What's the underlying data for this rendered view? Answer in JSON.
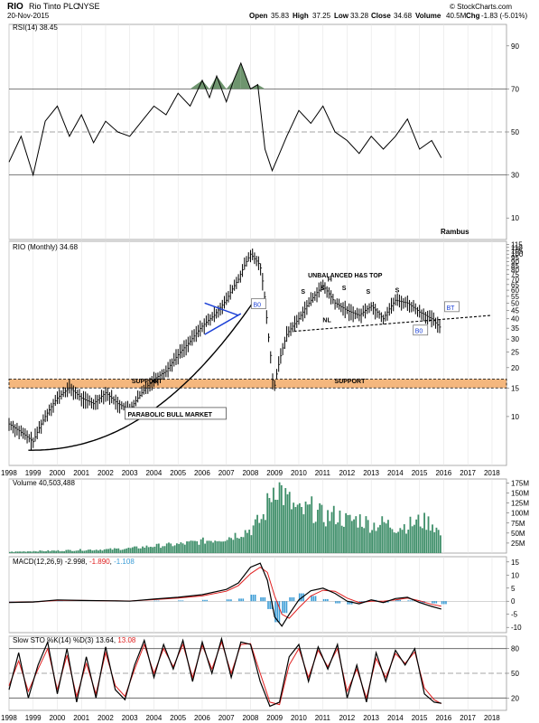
{
  "header": {
    "symbol": "RIO",
    "company": "Rio Tinto PLC",
    "exchange": "NYSE",
    "date": "20-Nov-2015",
    "quote": {
      "open": "35.83",
      "high": "37.25",
      "low": "33.28",
      "close": "34.68",
      "volume": "40.5M",
      "chg": "-1.83 (-5.01%)"
    },
    "labels": {
      "open": "Open",
      "high": "High",
      "low": "Low",
      "close": "Close",
      "volume": "Volume",
      "chg": "Chg"
    },
    "watermark": "© StockCharts.com"
  },
  "colors": {
    "price_bar": "#000000",
    "support_zone": "#f4b77e",
    "rsi_fill": "#5e8a5e",
    "volume": "#3f8f6a",
    "macd": "#000000",
    "signal": "#e02020",
    "hist": "#3b9cd6",
    "trend_blue": "#1a3fd6",
    "stoch_k": "#000000",
    "stoch_d": "#e02020"
  },
  "chart_data": [
    {
      "type": "line",
      "name": "rsi-panel",
      "legend": "RSI(14) 38.45",
      "ylim": [
        0,
        100
      ],
      "ticks": [
        "90",
        "70",
        "50",
        "30",
        "10"
      ],
      "tick_values": [
        90,
        70,
        50,
        30,
        10
      ],
      "reference_lines": [
        70,
        50,
        30
      ],
      "annotation": "Rambus",
      "x": [
        1998.0,
        1998.5,
        1999.0,
        1999.5,
        2000.0,
        2000.5,
        2001.0,
        2001.5,
        2002.0,
        2002.5,
        2003.0,
        2003.5,
        2004.0,
        2004.5,
        2005.0,
        2005.5,
        2006.0,
        2006.3,
        2006.6,
        2007.0,
        2007.3,
        2007.6,
        2008.0,
        2008.3,
        2008.6,
        2008.9,
        2009.2,
        2009.5,
        2010.0,
        2010.5,
        2011.0,
        2011.5,
        2012.0,
        2012.5,
        2013.0,
        2013.5,
        2014.0,
        2014.5,
        2015.0,
        2015.5,
        2015.9
      ],
      "values": [
        36,
        48,
        30,
        55,
        62,
        48,
        58,
        45,
        55,
        50,
        48,
        55,
        62,
        58,
        68,
        62,
        74,
        66,
        76,
        64,
        74,
        82,
        70,
        72,
        42,
        32,
        40,
        48,
        60,
        54,
        62,
        50,
        46,
        40,
        48,
        42,
        48,
        56,
        42,
        46,
        38
      ],
      "overbought_fill_threshold": 70
    },
    {
      "type": "bar",
      "name": "price-panel",
      "legend": "RIO (Monthly) 34.68",
      "ylim": [
        5,
        120
      ],
      "scale": "log",
      "ticks": [
        "115",
        "110",
        "105",
        "100",
        "95",
        "90",
        "85",
        "80",
        "75",
        "70",
        "65",
        "60",
        "55",
        "50",
        "45",
        "40",
        "35",
        "30",
        "25",
        "20",
        "15",
        "10"
      ],
      "tick_values": [
        115,
        110,
        105,
        100,
        95,
        90,
        85,
        80,
        75,
        70,
        65,
        60,
        55,
        50,
        45,
        40,
        35,
        30,
        25,
        20,
        15,
        10
      ],
      "x_ticks": [
        "1998",
        "1999",
        "2000",
        "2001",
        "2002",
        "2003",
        "2004",
        "2005",
        "2006",
        "2007",
        "2008",
        "2009",
        "2010",
        "2011",
        "2012",
        "2013",
        "2014",
        "2015",
        "2016",
        "2017",
        "2018"
      ],
      "x_tick_values": [
        1998,
        1999,
        2000,
        2001,
        2002,
        2003,
        2004,
        2005,
        2006,
        2007,
        2008,
        2009,
        2010,
        2011,
        2012,
        2013,
        2014,
        2015,
        2016,
        2017,
        2018
      ],
      "xlim": [
        1998,
        2018.6
      ],
      "price_x": [
        1998.0,
        1998.5,
        1999.0,
        1999.5,
        2000.0,
        2000.5,
        2001.0,
        2001.5,
        2002.0,
        2002.5,
        2003.0,
        2003.5,
        2004.0,
        2004.5,
        2005.0,
        2005.5,
        2006.0,
        2006.5,
        2007.0,
        2007.5,
        2008.0,
        2008.4,
        2008.7,
        2008.95,
        2009.2,
        2009.5,
        2010.0,
        2010.5,
        2011.0,
        2011.5,
        2012.0,
        2012.5,
        2013.0,
        2013.5,
        2014.0,
        2014.5,
        2015.0,
        2015.5,
        2015.9
      ],
      "price_values": [
        9,
        8,
        7,
        10,
        13,
        15,
        13,
        12,
        14,
        12,
        11,
        14,
        17,
        19,
        24,
        29,
        36,
        42,
        52,
        70,
        100,
        85,
        35,
        14,
        22,
        32,
        40,
        52,
        64,
        50,
        45,
        42,
        48,
        40,
        52,
        50,
        44,
        40,
        34.68
      ],
      "support_zone": [
        15,
        17
      ],
      "annotations": [
        {
          "text": "SUPPORT",
          "x": 2004.5,
          "y": 16
        },
        {
          "text": "SUPPORT",
          "x": 2012.9,
          "y": 16
        },
        {
          "text": "UNBALANCED H&S TOP",
          "x": 2011.8,
          "y": 72
        },
        {
          "text": "H",
          "x": 2011.3,
          "y": 68
        },
        {
          "text": "S",
          "x": 2010.2,
          "y": 57
        },
        {
          "text": "S",
          "x": 2011.0,
          "y": 60
        },
        {
          "text": "S",
          "x": 2011.9,
          "y": 60
        },
        {
          "text": "S",
          "x": 2012.9,
          "y": 57
        },
        {
          "text": "S",
          "x": 2014.1,
          "y": 58
        },
        {
          "text": "NL",
          "x": 2011.1,
          "y": 38
        },
        {
          "text": "B0",
          "x": 2008.3,
          "y": 48
        },
        {
          "text": "B0",
          "x": 2015.0,
          "y": 33
        },
        {
          "text": "BT",
          "x": 2016.3,
          "y": 46
        },
        {
          "text": "PARABOLIC BULL MARKET",
          "x": 2004.0,
          "y": 10
        }
      ]
    },
    {
      "type": "bar",
      "name": "volume-panel",
      "legend": "Volume 40,503,488",
      "ylim": [
        0,
        185
      ],
      "ticks": [
        "175M",
        "150M",
        "125M",
        "100M",
        "75M",
        "50M",
        "25M"
      ],
      "tick_values": [
        175,
        150,
        125,
        100,
        75,
        50,
        25
      ],
      "x": [
        1998.0,
        1999.0,
        2000.0,
        2001.0,
        2002.0,
        2003.0,
        2004.0,
        2005.0,
        2006.0,
        2007.0,
        2008.0,
        2008.5,
        2009.0,
        2009.5,
        2010.0,
        2010.5,
        2011.0,
        2011.5,
        2012.0,
        2012.5,
        2013.0,
        2013.5,
        2014.0,
        2014.5,
        2015.0,
        2015.5,
        2015.9
      ],
      "values": [
        3,
        5,
        6,
        8,
        9,
        12,
        18,
        22,
        30,
        38,
        60,
        90,
        180,
        130,
        100,
        110,
        90,
        95,
        80,
        85,
        70,
        75,
        65,
        70,
        80,
        75,
        40.5
      ]
    },
    {
      "type": "line",
      "name": "macd-panel",
      "legend_macd": "MACD(12,26,9)",
      "legend_macd_value": "-2.998",
      "legend_signal": "-1.890",
      "legend_hist": "-1.108",
      "ylim": [
        -12,
        17
      ],
      "ticks": [
        "15",
        "10",
        "5",
        "0",
        "-5",
        "-10"
      ],
      "tick_values": [
        15,
        10,
        5,
        0,
        -5,
        -10
      ],
      "x": [
        1998.0,
        1999.0,
        2000.0,
        2001.0,
        2002.0,
        2003.0,
        2004.0,
        2005.0,
        2006.0,
        2007.0,
        2007.5,
        2008.0,
        2008.4,
        2008.7,
        2009.0,
        2009.3,
        2009.6,
        2010.0,
        2010.5,
        2011.0,
        2011.5,
        2012.0,
        2012.5,
        2013.0,
        2013.5,
        2014.0,
        2014.5,
        2015.0,
        2015.5,
        2015.9
      ],
      "macd": [
        -0.5,
        -0.3,
        0.5,
        0.3,
        0.2,
        0.0,
        0.8,
        1.5,
        2.5,
        4.5,
        7.0,
        13.0,
        14.5,
        8.0,
        -6.0,
        -9.5,
        -5.0,
        0.5,
        4.0,
        5.0,
        3.0,
        0.0,
        -1.0,
        0.5,
        -0.5,
        1.0,
        1.5,
        -0.5,
        -2.0,
        -2.998
      ],
      "signal": [
        -0.4,
        -0.3,
        0.3,
        0.3,
        0.2,
        0.1,
        0.6,
        1.2,
        2.0,
        3.8,
        6.0,
        10.5,
        13.0,
        11.0,
        2.0,
        -5.0,
        -6.5,
        -2.5,
        2.0,
        4.2,
        3.8,
        1.2,
        -0.5,
        0.0,
        0.0,
        0.5,
        1.2,
        0.2,
        -1.2,
        -1.89
      ],
      "hist": [
        -0.1,
        0.0,
        0.2,
        0.0,
        0.0,
        -0.1,
        0.2,
        0.3,
        0.5,
        0.7,
        1.0,
        2.5,
        1.5,
        -3.0,
        -8.0,
        -4.5,
        1.5,
        3.0,
        2.0,
        0.8,
        -0.8,
        -1.2,
        -0.5,
        0.5,
        -0.5,
        0.5,
        0.3,
        -0.7,
        -0.8,
        -1.108
      ]
    },
    {
      "type": "line",
      "name": "stochastic-panel",
      "legend_k": "Slow STO %K(14) %D(3) 13.64,",
      "legend_d": "13.08",
      "ylim": [
        5,
        95
      ],
      "ticks": [
        "80",
        "50",
        "20"
      ],
      "tick_values": [
        80,
        50,
        20
      ],
      "x": [
        1998.0,
        1998.4,
        1998.8,
        1999.2,
        1999.6,
        2000.0,
        2000.4,
        2000.8,
        2001.2,
        2001.6,
        2002.0,
        2002.4,
        2002.8,
        2003.2,
        2003.6,
        2004.0,
        2004.4,
        2004.8,
        2005.2,
        2005.6,
        2006.0,
        2006.4,
        2006.8,
        2007.2,
        2007.6,
        2008.0,
        2008.4,
        2008.8,
        2009.2,
        2009.6,
        2010.0,
        2010.4,
        2010.8,
        2011.2,
        2011.6,
        2012.0,
        2012.4,
        2012.8,
        2013.2,
        2013.6,
        2014.0,
        2014.4,
        2014.8,
        2015.2,
        2015.6,
        2015.9
      ],
      "k": [
        30,
        75,
        20,
        60,
        88,
        25,
        80,
        15,
        70,
        20,
        82,
        30,
        18,
        60,
        90,
        45,
        85,
        55,
        90,
        40,
        88,
        50,
        92,
        45,
        88,
        85,
        40,
        10,
        15,
        70,
        85,
        40,
        82,
        55,
        85,
        20,
        60,
        15,
        75,
        40,
        78,
        60,
        80,
        25,
        15,
        13.64
      ],
      "d": [
        35,
        65,
        28,
        55,
        80,
        30,
        72,
        22,
        62,
        25,
        75,
        35,
        22,
        55,
        85,
        50,
        80,
        58,
        85,
        45,
        84,
        55,
        88,
        50,
        85,
        86,
        50,
        15,
        12,
        60,
        80,
        45,
        78,
        58,
        80,
        28,
        55,
        20,
        68,
        45,
        74,
        62,
        76,
        32,
        18,
        13.08
      ]
    }
  ]
}
